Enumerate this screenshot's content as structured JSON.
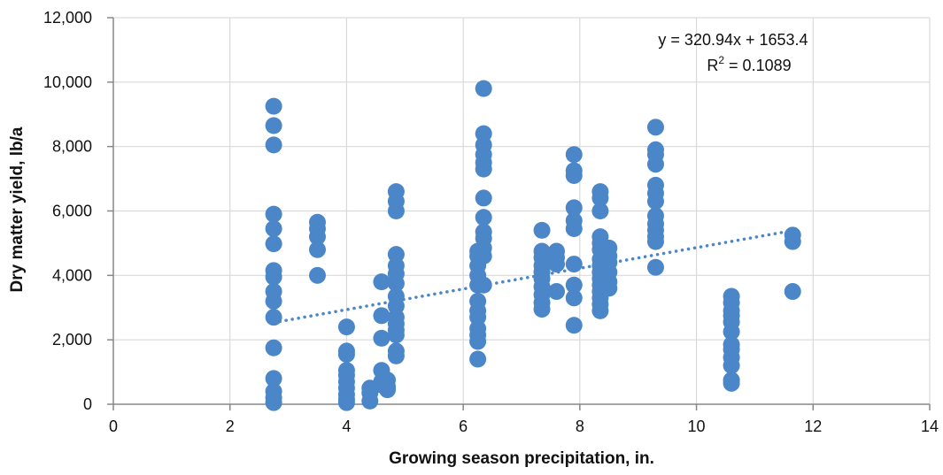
{
  "chart_data": {
    "type": "scatter",
    "title": "",
    "xlabel": "Growing season precipitation, in.",
    "ylabel": "Dry matter yield, lb/a",
    "xlim": [
      0,
      14
    ],
    "ylim": [
      0,
      12000
    ],
    "x_ticks": [
      0,
      2,
      4,
      6,
      8,
      10,
      12,
      14
    ],
    "x_tick_labels": [
      "0",
      "2",
      "4",
      "6",
      "8",
      "10",
      "12",
      "14"
    ],
    "y_ticks": [
      0,
      2000,
      4000,
      6000,
      8000,
      10000,
      12000
    ],
    "y_tick_labels": [
      "0",
      "2,000",
      "4,000",
      "6,000",
      "8,000",
      "10,000",
      "12,000"
    ],
    "grid": true,
    "colors": {
      "points": "#4a86c8",
      "trendline": "#4a86c8",
      "grid": "#d9d9d9",
      "axis": "#888888"
    },
    "points": [
      [
        2.75,
        9250
      ],
      [
        2.75,
        8650
      ],
      [
        2.75,
        8050
      ],
      [
        2.75,
        5900
      ],
      [
        2.75,
        5450
      ],
      [
        2.75,
        4980
      ],
      [
        2.75,
        4150
      ],
      [
        2.75,
        3950
      ],
      [
        2.75,
        3500
      ],
      [
        2.75,
        3200
      ],
      [
        2.75,
        2700
      ],
      [
        2.75,
        1750
      ],
      [
        2.75,
        800
      ],
      [
        2.75,
        400
      ],
      [
        2.75,
        200
      ],
      [
        2.75,
        50
      ],
      [
        3.5,
        5650
      ],
      [
        3.5,
        5450
      ],
      [
        3.5,
        5200
      ],
      [
        3.5,
        4800
      ],
      [
        3.5,
        4000
      ],
      [
        4.0,
        2400
      ],
      [
        4.0,
        1650
      ],
      [
        4.0,
        1550
      ],
      [
        4.0,
        1050
      ],
      [
        4.0,
        900
      ],
      [
        4.0,
        700
      ],
      [
        4.0,
        500
      ],
      [
        4.0,
        300
      ],
      [
        4.0,
        150
      ],
      [
        4.0,
        50
      ],
      [
        4.4,
        500
      ],
      [
        4.4,
        350
      ],
      [
        4.4,
        100
      ],
      [
        4.6,
        3800
      ],
      [
        4.6,
        2750
      ],
      [
        4.6,
        2050
      ],
      [
        4.6,
        1050
      ],
      [
        4.6,
        700
      ],
      [
        4.6,
        600
      ],
      [
        4.7,
        750
      ],
      [
        4.7,
        550
      ],
      [
        4.7,
        450
      ],
      [
        4.85,
        6600
      ],
      [
        4.85,
        6300
      ],
      [
        4.85,
        6000
      ],
      [
        4.85,
        4650
      ],
      [
        4.85,
        4300
      ],
      [
        4.85,
        4050
      ],
      [
        4.85,
        3750
      ],
      [
        4.85,
        3350
      ],
      [
        4.85,
        3050
      ],
      [
        4.85,
        2700
      ],
      [
        4.85,
        2500
      ],
      [
        4.85,
        2300
      ],
      [
        4.85,
        2150
      ],
      [
        4.85,
        1650
      ],
      [
        4.85,
        1500
      ],
      [
        6.25,
        4750
      ],
      [
        6.25,
        4600
      ],
      [
        6.25,
        4300
      ],
      [
        6.25,
        4000
      ],
      [
        6.25,
        3700
      ],
      [
        6.25,
        3200
      ],
      [
        6.25,
        2900
      ],
      [
        6.25,
        2700
      ],
      [
        6.25,
        2350
      ],
      [
        6.25,
        2150
      ],
      [
        6.25,
        1950
      ],
      [
        6.25,
        1400
      ],
      [
        6.35,
        9800
      ],
      [
        6.35,
        8400
      ],
      [
        6.35,
        8050
      ],
      [
        6.35,
        7750
      ],
      [
        6.35,
        7500
      ],
      [
        6.35,
        7300
      ],
      [
        6.35,
        6400
      ],
      [
        6.35,
        5800
      ],
      [
        6.35,
        5350
      ],
      [
        6.35,
        5150
      ],
      [
        6.35,
        4850
      ],
      [
        6.35,
        4600
      ],
      [
        6.35,
        3700
      ],
      [
        7.35,
        5400
      ],
      [
        7.35,
        4750
      ],
      [
        7.35,
        4550
      ],
      [
        7.35,
        4300
      ],
      [
        7.35,
        4100
      ],
      [
        7.35,
        3900
      ],
      [
        7.35,
        3650
      ],
      [
        7.35,
        3400
      ],
      [
        7.35,
        3150
      ],
      [
        7.35,
        2950
      ],
      [
        7.6,
        4750
      ],
      [
        7.6,
        4550
      ],
      [
        7.6,
        4350
      ],
      [
        7.6,
        3500
      ],
      [
        7.9,
        7750
      ],
      [
        7.9,
        7250
      ],
      [
        7.9,
        7100
      ],
      [
        7.9,
        6100
      ],
      [
        7.9,
        5700
      ],
      [
        7.9,
        5450
      ],
      [
        7.9,
        4350
      ],
      [
        7.9,
        3700
      ],
      [
        7.9,
        3300
      ],
      [
        7.9,
        2450
      ],
      [
        8.35,
        6600
      ],
      [
        8.35,
        6400
      ],
      [
        8.35,
        6000
      ],
      [
        8.35,
        5200
      ],
      [
        8.35,
        5000
      ],
      [
        8.35,
        4800
      ],
      [
        8.35,
        4500
      ],
      [
        8.35,
        4300
      ],
      [
        8.35,
        4100
      ],
      [
        8.35,
        3900
      ],
      [
        8.35,
        3700
      ],
      [
        8.35,
        3500
      ],
      [
        8.35,
        3300
      ],
      [
        8.35,
        3100
      ],
      [
        8.35,
        2900
      ],
      [
        8.5,
        4850
      ],
      [
        8.5,
        4600
      ],
      [
        8.5,
        4400
      ],
      [
        8.5,
        4100
      ],
      [
        8.5,
        3800
      ],
      [
        8.5,
        3600
      ],
      [
        9.3,
        8600
      ],
      [
        9.3,
        7900
      ],
      [
        9.3,
        7750
      ],
      [
        9.3,
        7450
      ],
      [
        9.3,
        6800
      ],
      [
        9.3,
        6550
      ],
      [
        9.3,
        6300
      ],
      [
        9.3,
        5850
      ],
      [
        9.3,
        5600
      ],
      [
        9.3,
        5400
      ],
      [
        9.3,
        5200
      ],
      [
        9.3,
        5050
      ],
      [
        9.3,
        4250
      ],
      [
        10.6,
        3350
      ],
      [
        10.6,
        3150
      ],
      [
        10.6,
        2900
      ],
      [
        10.6,
        2750
      ],
      [
        10.6,
        2550
      ],
      [
        10.6,
        2250
      ],
      [
        10.6,
        1850
      ],
      [
        10.6,
        1700
      ],
      [
        10.6,
        1450
      ],
      [
        10.6,
        1200
      ],
      [
        10.6,
        750
      ],
      [
        10.6,
        650
      ],
      [
        11.65,
        5250
      ],
      [
        11.65,
        5050
      ],
      [
        11.65,
        3500
      ]
    ],
    "trendline": {
      "slope": 320.94,
      "intercept": 1653.4,
      "x_range": [
        2.75,
        11.65
      ],
      "style": "dotted"
    },
    "annotations": {
      "equation": "y = 320.94x + 1653.4",
      "r_squared_prefix": "R",
      "r_squared_sup": "2",
      "r_squared_suffix": " = 0.1089"
    }
  }
}
